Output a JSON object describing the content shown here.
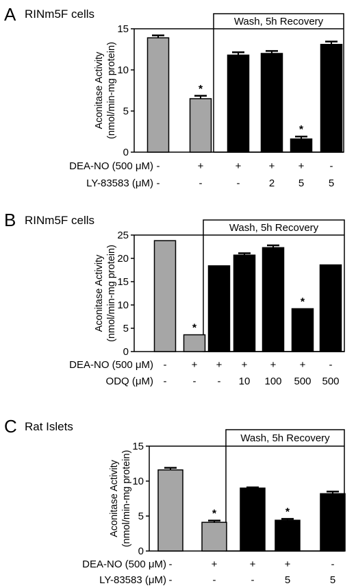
{
  "chart_data": [
    {
      "type": "bar",
      "panel_letter": "A",
      "panel_title": "RINm5F cells",
      "ylabel": [
        "Aconitase Activity",
        "(nmol/min-mg protein)"
      ],
      "ylim": [
        0,
        15
      ],
      "yticks": [
        "0",
        "5",
        "10",
        "15"
      ],
      "box_label": "Wash, 5h Recovery",
      "values": [
        13.9,
        6.5,
        11.8,
        12.0,
        1.6,
        13.1
      ],
      "errors": [
        0.3,
        0.35,
        0.35,
        0.3,
        0.3,
        0.35
      ],
      "colors": [
        "#a6a6a6",
        "#a6a6a6",
        "#000000",
        "#000000",
        "#000000",
        "#000000"
      ],
      "significant": [
        "",
        "*",
        "",
        "",
        "*",
        ""
      ],
      "condition_rows": [
        {
          "label": "DEA-NO (500 μM)",
          "values": [
            "-",
            "+",
            "+",
            "+",
            "+",
            "-"
          ]
        },
        {
          "label": "LY-83583 (μM)",
          "values": [
            "-",
            "-",
            "-",
            "2",
            "5",
            "5"
          ]
        }
      ]
    },
    {
      "type": "bar",
      "panel_letter": "B",
      "panel_title": "RINm5F cells",
      "ylabel": [
        "Aconitase Activity",
        "(nmol/min-mg protein)"
      ],
      "ylim": [
        0,
        25
      ],
      "yticks": [
        "0",
        "5",
        "10",
        "15",
        "20",
        "25"
      ],
      "box_label": "Wash, 5h Recovery",
      "values": [
        23.8,
        3.6,
        18.4,
        20.7,
        22.3,
        9.2,
        18.6
      ],
      "errors": [
        0,
        0,
        0,
        0.4,
        0.5,
        0,
        0
      ],
      "colors": [
        "#a6a6a6",
        "#a6a6a6",
        "#000000",
        "#000000",
        "#000000",
        "#000000",
        "#000000"
      ],
      "significant": [
        "",
        "*",
        "",
        "",
        "",
        "*",
        ""
      ],
      "condition_rows": [
        {
          "label": "DEA-NO (500 μM)",
          "values": [
            "-",
            "+",
            "+",
            "+",
            "+",
            "+",
            "-"
          ]
        },
        {
          "label": "ODQ (μM)",
          "values": [
            "-",
            "-",
            "-",
            "10",
            "100",
            "500",
            "500"
          ]
        }
      ]
    },
    {
      "type": "bar",
      "panel_letter": "C",
      "panel_title": "Rat Islets",
      "ylabel": [
        "Aconitase Activity",
        "(nmol/min-mg protein)"
      ],
      "ylim": [
        0,
        15
      ],
      "yticks": [
        "0",
        "5",
        "10",
        "15"
      ],
      "box_label": "Wash, 5h Recovery",
      "values": [
        11.6,
        4.1,
        9.0,
        4.4,
        8.2
      ],
      "errors": [
        0.3,
        0.25,
        0.1,
        0.2,
        0.3
      ],
      "colors": [
        "#a6a6a6",
        "#a6a6a6",
        "#000000",
        "#000000",
        "#000000"
      ],
      "significant": [
        "",
        "*",
        "",
        "*",
        ""
      ],
      "condition_rows": [
        {
          "label": "DEA-NO (500 μM)",
          "values": [
            "-",
            "+",
            "+",
            "+",
            "-"
          ]
        },
        {
          "label": "LY-83583 (μM)",
          "values": [
            "-",
            "-",
            "-",
            "5",
            "5"
          ]
        }
      ]
    }
  ]
}
